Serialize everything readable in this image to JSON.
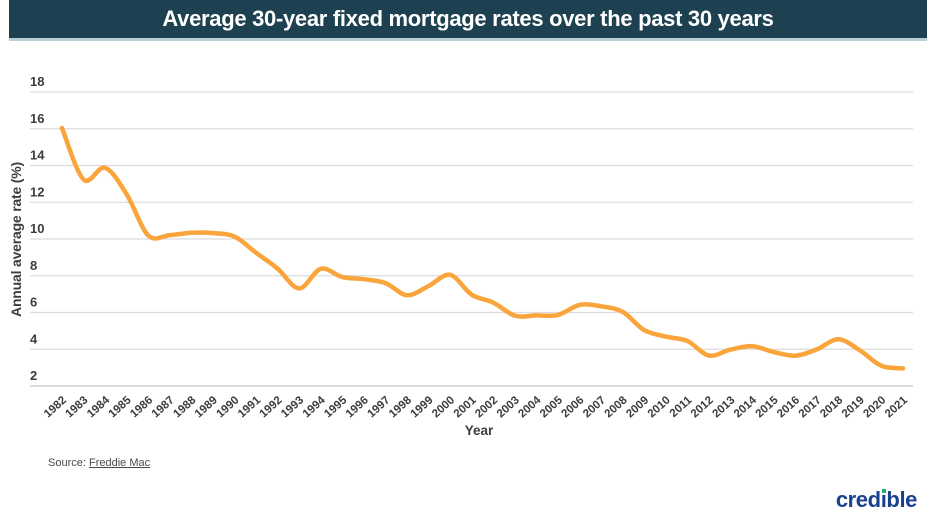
{
  "header": {
    "title": "Average 30-year fixed mortgage rates over the past 30 years",
    "bg_color": "#1D4150",
    "text_color": "#FFFFFF"
  },
  "chart_data": {
    "type": "line",
    "title": "Average 30-year fixed mortgage rates over the past 30 years",
    "xlabel": "Year",
    "ylabel": "Annual average rate (%)",
    "x": [
      1982,
      1983,
      1984,
      1985,
      1986,
      1987,
      1988,
      1989,
      1990,
      1991,
      1992,
      1993,
      1994,
      1995,
      1996,
      1997,
      1998,
      1999,
      2000,
      2001,
      2002,
      2003,
      2004,
      2005,
      2006,
      2007,
      2008,
      2009,
      2010,
      2011,
      2012,
      2013,
      2014,
      2015,
      2016,
      2017,
      2018,
      2019,
      2020,
      2021
    ],
    "values": [
      16.04,
      13.24,
      13.88,
      12.43,
      10.19,
      10.21,
      10.34,
      10.32,
      10.13,
      9.25,
      8.39,
      7.31,
      8.38,
      7.93,
      7.81,
      7.6,
      6.94,
      7.44,
      8.05,
      6.97,
      6.54,
      5.83,
      5.84,
      5.87,
      6.41,
      6.34,
      6.03,
      5.04,
      4.69,
      4.45,
      3.66,
      3.98,
      4.17,
      3.85,
      3.65,
      3.99,
      4.54,
      3.94,
      3.1,
      2.96
    ],
    "yticks": [
      18,
      16,
      14,
      12,
      10,
      8,
      6,
      4,
      2
    ],
    "ylim": [
      2,
      18
    ],
    "xlim": [
      1982,
      2021
    ],
    "grid": true,
    "legend": "none",
    "line_color": "#F9A53C",
    "gridline_color": "#dcdcdc",
    "axisline_color": "#c8c8c8",
    "tick_label_color": "#3d3d3d"
  },
  "source": {
    "prefix": "Source:",
    "link_text": "Freddie Mac"
  },
  "logo": {
    "text": "credible",
    "color": "#1A4190",
    "dot_color": "#23AF6E"
  }
}
